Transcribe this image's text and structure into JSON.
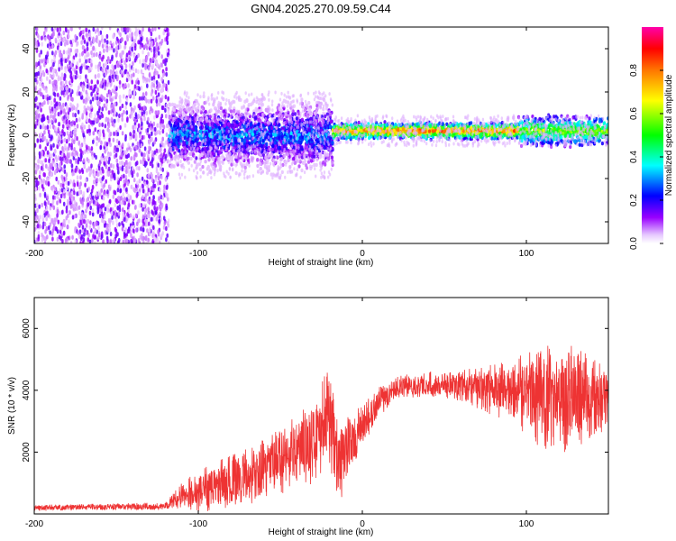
{
  "chart_data": [
    {
      "type": "heatmap",
      "title": "GN04.2025.270.09.59.C44",
      "xlabel": "Height of straight line (km)",
      "ylabel": "Frequency (Hz)",
      "xlim": [
        -200,
        150
      ],
      "ylim": [
        -50,
        50
      ],
      "xticks": [
        -200,
        -100,
        0,
        100
      ],
      "xtick_labels": [
        "-200",
        "-100",
        "0",
        "100"
      ],
      "yticks": [
        -40,
        -20,
        0,
        20,
        40
      ],
      "ytick_labels": [
        "-40",
        "-20",
        "0",
        "20",
        "40"
      ],
      "colorbar": {
        "label": "Normalized spectral amplitude",
        "range": [
          0,
          1
        ],
        "ticks": [
          0,
          0.2,
          0.4,
          0.6,
          0.8
        ],
        "tick_labels": [
          "0.0",
          "0.2",
          "0.4",
          "0.6",
          "0.8"
        ],
        "colors": [
          "#ffffff",
          "#9900ff",
          "#0000ff",
          "#00ffff",
          "#00ff00",
          "#ffff00",
          "#ff7700",
          "#ff0000",
          "#ff00aa"
        ]
      },
      "regions": [
        {
          "name": "noise",
          "x_range": [
            -200,
            -118
          ],
          "y_range": [
            -50,
            50
          ],
          "level": 0.15
        },
        {
          "name": "broadband",
          "x_range": [
            -118,
            -18
          ],
          "y_range": [
            -12,
            12
          ],
          "level": 0.3
        },
        {
          "name": "narrowband",
          "x_range": [
            -18,
            150
          ],
          "y_center": 2,
          "y_halfwidth": 3,
          "level": 0.75
        }
      ]
    },
    {
      "type": "line",
      "xlabel": "Height of straight line (km)",
      "ylabel": "SNR (10 * v/v)",
      "xlim": [
        -200,
        150
      ],
      "ylim": [
        0,
        7000
      ],
      "xticks": [
        -200,
        -100,
        0,
        100
      ],
      "xtick_labels": [
        "-200",
        "-100",
        "0",
        "100"
      ],
      "yticks": [
        2000,
        4000,
        6000
      ],
      "ytick_labels": [
        "2000",
        "4000",
        "6000"
      ],
      "color": "#ee3333",
      "envelope": [
        {
          "x": -200,
          "y": 200
        },
        {
          "x": -120,
          "y": 250
        },
        {
          "x": -110,
          "y": 600
        },
        {
          "x": -90,
          "y": 900
        },
        {
          "x": -70,
          "y": 1200
        },
        {
          "x": -50,
          "y": 1700
        },
        {
          "x": -30,
          "y": 2400
        },
        {
          "x": -20,
          "y": 3200
        },
        {
          "x": -15,
          "y": 1500
        },
        {
          "x": -8,
          "y": 2200
        },
        {
          "x": 0,
          "y": 2800
        },
        {
          "x": 10,
          "y": 3600
        },
        {
          "x": 20,
          "y": 4100
        },
        {
          "x": 40,
          "y": 4200
        },
        {
          "x": 60,
          "y": 4150
        },
        {
          "x": 80,
          "y": 4000
        },
        {
          "x": 100,
          "y": 3900
        },
        {
          "x": 120,
          "y": 3700
        },
        {
          "x": 150,
          "y": 3800
        }
      ],
      "noise": [
        {
          "x": -200,
          "amp": 100
        },
        {
          "x": -120,
          "amp": 120
        },
        {
          "x": -100,
          "amp": 700
        },
        {
          "x": -50,
          "amp": 1100
        },
        {
          "x": -20,
          "amp": 1600
        },
        {
          "x": 0,
          "amp": 700
        },
        {
          "x": 20,
          "amp": 350
        },
        {
          "x": 60,
          "amp": 500
        },
        {
          "x": 90,
          "amp": 1000
        },
        {
          "x": 115,
          "amp": 1900
        },
        {
          "x": 130,
          "amp": 1700
        },
        {
          "x": 150,
          "amp": 1000
        }
      ]
    }
  ]
}
